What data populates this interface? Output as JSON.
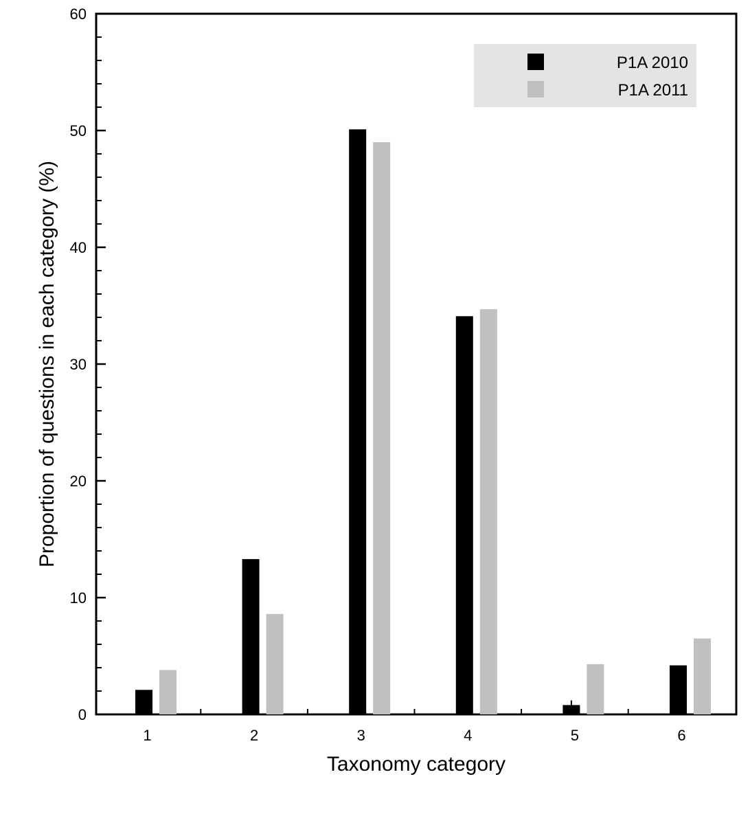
{
  "chart_data": {
    "type": "bar",
    "title": "",
    "xlabel": "Taxonomy category",
    "ylabel": "Proportion of questions in each category (%)",
    "categories": [
      "1",
      "2",
      "3",
      "4",
      "5",
      "6"
    ],
    "series": [
      {
        "name": "P1A 2010",
        "color": "#000000",
        "values": [
          2.1,
          13.3,
          50.1,
          34.1,
          0.8,
          4.2
        ]
      },
      {
        "name": "P1A 2011",
        "color": "#c0c0c0",
        "values": [
          3.8,
          8.6,
          49.0,
          34.7,
          4.3,
          6.5
        ]
      }
    ],
    "ylim": [
      0,
      60
    ],
    "yticks": [
      0,
      10,
      20,
      30,
      40,
      50,
      60
    ],
    "grid": false,
    "legend": {
      "position": "top-right",
      "background": "#e4e4e4"
    },
    "error_bars": [
      {
        "series": "P1A 2010",
        "category": "5",
        "low": 0.5,
        "high": 1.2
      }
    ]
  }
}
